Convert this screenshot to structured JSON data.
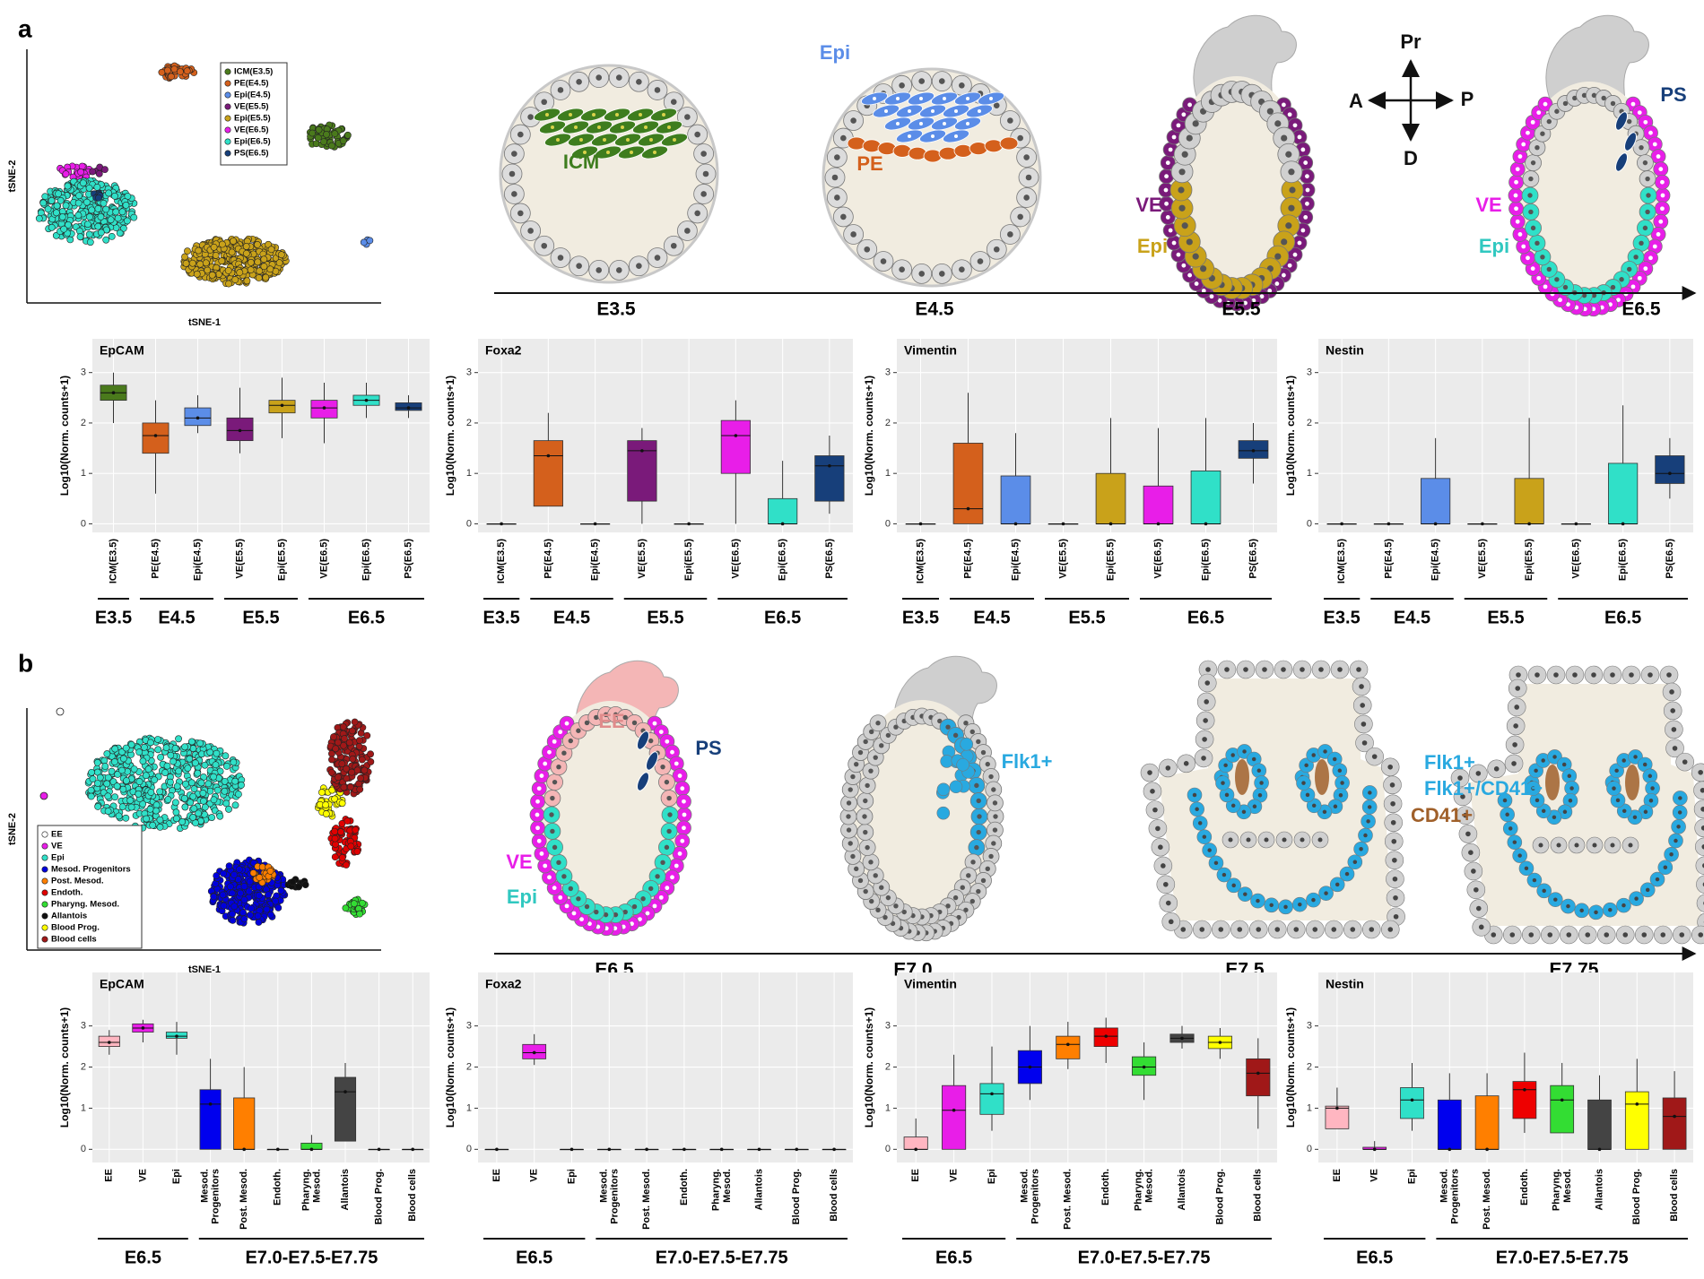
{
  "panel_labels": [
    "a",
    "b"
  ],
  "tsne_a": {
    "xlabel": "tSNE-1",
    "ylabel": "tSNE-2",
    "legend": {
      "names": [
        "ICM(E3.5)",
        "PE(E4.5)",
        "Epi(E4.5)",
        "VE(E5.5)",
        "Epi(E5.5)",
        "VE(E6.5)",
        "Epi(E6.5)",
        "PS(E6.5)"
      ],
      "colors": [
        "#4a7a1c",
        "#d4601c",
        "#5b8de8",
        "#7a1a7a",
        "#c9a21a",
        "#e81ee8",
        "#30e0c8",
        "#173f7a"
      ]
    }
  },
  "tsne_b": {
    "xlabel": "tSNE-1",
    "ylabel": "tSNE-2",
    "legend": {
      "names": [
        "EE",
        "VE",
        "Epi",
        "Mesod. Progenitors",
        "Post. Mesod.",
        "Endoth.",
        "Pharyng. Mesod.",
        "Allantois",
        "Blood Prog.",
        "Blood cells"
      ],
      "colors": [
        "#ffffff",
        "#e81ee8",
        "#30e0c8",
        "#0000dd",
        "#ff7f00",
        "#e00000",
        "#33dd33",
        "#111111",
        "#ffff00",
        "#a01818"
      ]
    }
  },
  "diagram_a": {
    "timeline": [
      "E3.5",
      "E4.5",
      "E5.5",
      "E6.5"
    ],
    "labels": [
      {
        "text": "ICM",
        "color": "#3e7d1e"
      },
      {
        "text": "Epi",
        "color": "#5b8de8"
      },
      {
        "text": "PE",
        "color": "#d4601c"
      },
      {
        "text": "VE",
        "color": "#7a1a7a"
      },
      {
        "text": "Epi",
        "color": "#c9a21a"
      },
      {
        "text": "Pr",
        "color": "#111111"
      },
      {
        "text": "A",
        "color": "#111111"
      },
      {
        "text": "P",
        "color": "#111111"
      },
      {
        "text": "D",
        "color": "#111111"
      },
      {
        "text": "PS",
        "color": "#173f7a"
      },
      {
        "text": "VE",
        "color": "#e81ee8"
      },
      {
        "text": "Epi",
        "color": "#30c8c0"
      }
    ]
  },
  "diagram_b": {
    "timeline": [
      "E6.5",
      "E7.0",
      "E7.5",
      "E7.75"
    ],
    "labels": [
      {
        "text": "EE",
        "color": "#e08c8c"
      },
      {
        "text": "PS",
        "color": "#173f7a"
      },
      {
        "text": "VE",
        "color": "#e81ee8"
      },
      {
        "text": "Epi",
        "color": "#30c8c0"
      },
      {
        "text": "Flk1+",
        "color": "#29a9e0"
      },
      {
        "text": "Flk1+",
        "color": "#29a9e0"
      },
      {
        "text": "Flk1+/CD41+",
        "color": "#29a9e0"
      },
      {
        "text": "CD41+",
        "color": "#a0602a"
      }
    ]
  },
  "chart_data": [
    {
      "type": "box",
      "title": "EpCAM",
      "y_label": "Log10(Norm. counts+1)",
      "categories": [
        "ICM(E3.5)",
        "PE(E4.5)",
        "Epi(E4.5)",
        "VE(E5.5)",
        "Epi(E5.5)",
        "VE(E6.5)",
        "Epi(E6.5)",
        "PS(E6.5)"
      ],
      "colors": [
        "#4a7a1c",
        "#d4601c",
        "#5b8de8",
        "#7a1a7a",
        "#c9a21a",
        "#e81ee8",
        "#30e0c8",
        "#173f7a"
      ],
      "boxes": [
        {
          "whisker_low": 2.0,
          "q1": 2.45,
          "median": 2.6,
          "q3": 2.75,
          "whisker_high": 3.0
        },
        {
          "whisker_low": 0.6,
          "q1": 1.4,
          "median": 1.75,
          "q3": 2.0,
          "whisker_high": 2.45
        },
        {
          "whisker_low": 1.8,
          "q1": 1.95,
          "median": 2.1,
          "q3": 2.3,
          "whisker_high": 2.55
        },
        {
          "whisker_low": 1.4,
          "q1": 1.65,
          "median": 1.85,
          "q3": 2.1,
          "whisker_high": 2.7
        },
        {
          "whisker_low": 1.7,
          "q1": 2.2,
          "median": 2.35,
          "q3": 2.45,
          "whisker_high": 2.9
        },
        {
          "whisker_low": 1.6,
          "q1": 2.1,
          "median": 2.3,
          "q3": 2.45,
          "whisker_high": 2.8
        },
        {
          "whisker_low": 2.1,
          "q1": 2.35,
          "median": 2.45,
          "q3": 2.55,
          "whisker_high": 2.8
        },
        {
          "whisker_low": 2.1,
          "q1": 2.25,
          "median": 2.3,
          "q3": 2.4,
          "whisker_high": 2.55
        }
      ],
      "ylim": [
        -0.17,
        3.67
      ],
      "yticks": [
        0,
        1,
        2,
        3
      ],
      "grid": true,
      "stages": [
        "E3.5",
        "E4.5",
        "E5.5",
        "E6.5"
      ]
    },
    {
      "type": "box",
      "title": "Foxa2",
      "y_label": "Log10(Norm. counts+1)",
      "categories": [
        "ICM(E3.5)",
        "PE(E4.5)",
        "Epi(E4.5)",
        "VE(E5.5)",
        "Epi(E5.5)",
        "VE(E6.5)",
        "Epi(E6.5)",
        "PS(E6.5)"
      ],
      "colors": [
        "#4a7a1c",
        "#d4601c",
        "#5b8de8",
        "#7a1a7a",
        "#c9a21a",
        "#e81ee8",
        "#30e0c8",
        "#173f7a"
      ],
      "boxes": [
        {
          "whisker_low": 0,
          "q1": 0,
          "median": 0,
          "q3": 0,
          "whisker_high": 0
        },
        {
          "whisker_low": 0.35,
          "q1": 0.35,
          "median": 1.35,
          "q3": 1.65,
          "whisker_high": 2.2
        },
        {
          "whisker_low": 0,
          "q1": 0,
          "median": 0,
          "q3": 0,
          "whisker_high": 0
        },
        {
          "whisker_low": 0,
          "q1": 0.45,
          "median": 1.45,
          "q3": 1.65,
          "whisker_high": 1.9
        },
        {
          "whisker_low": 0,
          "q1": 0,
          "median": 0,
          "q3": 0,
          "whisker_high": 0
        },
        {
          "whisker_low": 0,
          "q1": 1.0,
          "median": 1.75,
          "q3": 2.05,
          "whisker_high": 2.45
        },
        {
          "whisker_low": 0,
          "q1": 0,
          "median": 0,
          "q3": 0.5,
          "whisker_high": 1.25
        },
        {
          "whisker_low": 0.2,
          "q1": 0.45,
          "median": 1.15,
          "q3": 1.35,
          "whisker_high": 1.75
        }
      ],
      "ylim": [
        -0.17,
        3.67
      ],
      "yticks": [
        0,
        1,
        2,
        3
      ],
      "grid": true,
      "stages": [
        "E3.5",
        "E4.5",
        "E5.5",
        "E6.5"
      ]
    },
    {
      "type": "box",
      "title": "Vimentin",
      "y_label": "Log10(Norm. counts+1)",
      "categories": [
        "ICM(E3.5)",
        "PE(E4.5)",
        "Epi(E4.5)",
        "VE(E5.5)",
        "Epi(E5.5)",
        "VE(E6.5)",
        "Epi(E6.5)",
        "PS(E6.5)"
      ],
      "colors": [
        "#4a7a1c",
        "#d4601c",
        "#5b8de8",
        "#7a1a7a",
        "#c9a21a",
        "#e81ee8",
        "#30e0c8",
        "#173f7a"
      ],
      "boxes": [
        {
          "whisker_low": 0,
          "q1": 0,
          "median": 0,
          "q3": 0,
          "whisker_high": 0
        },
        {
          "whisker_low": 0,
          "q1": 0,
          "median": 0.3,
          "q3": 1.6,
          "whisker_high": 2.6
        },
        {
          "whisker_low": 0,
          "q1": 0,
          "median": 0,
          "q3": 0.95,
          "whisker_high": 1.8
        },
        {
          "whisker_low": 0,
          "q1": 0,
          "median": 0,
          "q3": 0,
          "whisker_high": 0
        },
        {
          "whisker_low": 0,
          "q1": 0,
          "median": 0,
          "q3": 1.0,
          "whisker_high": 2.1
        },
        {
          "whisker_low": 0,
          "q1": 0,
          "median": 0,
          "q3": 0.75,
          "whisker_high": 1.9
        },
        {
          "whisker_low": 0,
          "q1": 0,
          "median": 0,
          "q3": 1.05,
          "whisker_high": 2.1
        },
        {
          "whisker_low": 0.8,
          "q1": 1.3,
          "median": 1.45,
          "q3": 1.65,
          "whisker_high": 2.0
        }
      ],
      "ylim": [
        -0.17,
        3.67
      ],
      "yticks": [
        0,
        1,
        2,
        3
      ],
      "grid": true,
      "stages": [
        "E3.5",
        "E4.5",
        "E5.5",
        "E6.5"
      ]
    },
    {
      "type": "box",
      "title": "Nestin",
      "y_label": "Log10(Norm. counts+1)",
      "categories": [
        "ICM(E3.5)",
        "PE(E4.5)",
        "Epi(E4.5)",
        "VE(E5.5)",
        "Epi(E5.5)",
        "VE(E6.5)",
        "Epi(E6.5)",
        "PS(E6.5)"
      ],
      "colors": [
        "#4a7a1c",
        "#d4601c",
        "#5b8de8",
        "#7a1a7a",
        "#c9a21a",
        "#e81ee8",
        "#30e0c8",
        "#173f7a"
      ],
      "boxes": [
        {
          "whisker_low": 0,
          "q1": 0,
          "median": 0,
          "q3": 0,
          "whisker_high": 0
        },
        {
          "whisker_low": 0,
          "q1": 0,
          "median": 0,
          "q3": 0,
          "whisker_high": 0
        },
        {
          "whisker_low": 0,
          "q1": 0,
          "median": 0,
          "q3": 0.9,
          "whisker_high": 1.7
        },
        {
          "whisker_low": 0,
          "q1": 0,
          "median": 0,
          "q3": 0,
          "whisker_high": 0
        },
        {
          "whisker_low": 0,
          "q1": 0,
          "median": 0,
          "q3": 0.9,
          "whisker_high": 2.1
        },
        {
          "whisker_low": 0,
          "q1": 0,
          "median": 0,
          "q3": 0,
          "whisker_high": 0
        },
        {
          "whisker_low": 0,
          "q1": 0,
          "median": 0,
          "q3": 1.2,
          "whisker_high": 2.35
        },
        {
          "whisker_low": 0.5,
          "q1": 0.8,
          "median": 1.0,
          "q3": 1.35,
          "whisker_high": 1.7
        }
      ],
      "ylim": [
        -0.17,
        3.67
      ],
      "yticks": [
        0,
        1,
        2,
        3
      ],
      "grid": true,
      "stages": [
        "E3.5",
        "E4.5",
        "E5.5",
        "E6.5"
      ]
    },
    {
      "type": "box",
      "title": "EpCAM",
      "y_label": "Log10(Norm. counts+1)",
      "categories": [
        "EE",
        "VE",
        "Epi",
        "Mesod.\nProgenitors",
        "Post. Mesod.",
        "Endoth.",
        "Pharyng.\nMesod.",
        "Allantois",
        "Blood Prog.",
        "Blood cells"
      ],
      "colors": [
        "#ffb6c1",
        "#e81ee8",
        "#30e0c8",
        "#0000ee",
        "#ff7f00",
        "#ee0000",
        "#33dd33",
        "#444444",
        "#ffff00",
        "#a01818"
      ],
      "boxes": [
        {
          "whisker_low": 2.3,
          "q1": 2.5,
          "median": 2.6,
          "q3": 2.75,
          "whisker_high": 2.9
        },
        {
          "whisker_low": 2.6,
          "q1": 2.85,
          "median": 2.95,
          "q3": 3.05,
          "whisker_high": 3.15
        },
        {
          "whisker_low": 2.3,
          "q1": 2.7,
          "median": 2.75,
          "q3": 2.85,
          "whisker_high": 3.1
        },
        {
          "whisker_low": 0,
          "q1": 0,
          "median": 1.1,
          "q3": 1.45,
          "whisker_high": 2.2
        },
        {
          "whisker_low": 0,
          "q1": 0,
          "median": 0,
          "q3": 1.25,
          "whisker_high": 2.0
        },
        {
          "whisker_low": 0,
          "q1": 0,
          "median": 0,
          "q3": 0,
          "whisker_high": 0
        },
        {
          "whisker_low": 0,
          "q1": 0,
          "median": 0,
          "q3": 0.15,
          "whisker_high": 0.35
        },
        {
          "whisker_low": 0.2,
          "q1": 0.2,
          "median": 1.4,
          "q3": 1.75,
          "whisker_high": 2.1
        },
        {
          "whisker_low": 0,
          "q1": 0,
          "median": 0,
          "q3": 0,
          "whisker_high": 0
        },
        {
          "whisker_low": 0,
          "q1": 0,
          "median": 0,
          "q3": 0,
          "whisker_high": 0
        }
      ],
      "ylim": [
        -0.32,
        4.3
      ],
      "yticks": [
        0,
        1,
        2,
        3
      ],
      "grid": true,
      "stages": [
        "E6.5",
        "E7.0-E7.5-E7.75"
      ]
    },
    {
      "type": "box",
      "title": "Foxa2",
      "y_label": "Log10(Norm. counts+1)",
      "categories": [
        "EE",
        "VE",
        "Epi",
        "Mesod.\nProgenitors",
        "Post. Mesod.",
        "Endoth.",
        "Pharyng.\nMesod.",
        "Allantois",
        "Blood Prog.",
        "Blood cells"
      ],
      "colors": [
        "#ffb6c1",
        "#e81ee8",
        "#30e0c8",
        "#0000ee",
        "#ff7f00",
        "#ee0000",
        "#33dd33",
        "#444444",
        "#ffff00",
        "#a01818"
      ],
      "boxes": [
        {
          "whisker_low": 0,
          "q1": 0,
          "median": 0,
          "q3": 0,
          "whisker_high": 0
        },
        {
          "whisker_low": 2.05,
          "q1": 2.2,
          "median": 2.35,
          "q3": 2.55,
          "whisker_high": 2.8
        },
        {
          "whisker_low": 0,
          "q1": 0,
          "median": 0,
          "q3": 0,
          "whisker_high": 0
        },
        {
          "whisker_low": 0,
          "q1": 0,
          "median": 0,
          "q3": 0,
          "whisker_high": 0
        },
        {
          "whisker_low": 0,
          "q1": 0,
          "median": 0,
          "q3": 0,
          "whisker_high": 0
        },
        {
          "whisker_low": 0,
          "q1": 0,
          "median": 0,
          "q3": 0,
          "whisker_high": 0
        },
        {
          "whisker_low": 0,
          "q1": 0,
          "median": 0,
          "q3": 0,
          "whisker_high": 0
        },
        {
          "whisker_low": 0,
          "q1": 0,
          "median": 0,
          "q3": 0,
          "whisker_high": 0
        },
        {
          "whisker_low": 0,
          "q1": 0,
          "median": 0,
          "q3": 0,
          "whisker_high": 0
        },
        {
          "whisker_low": 0,
          "q1": 0,
          "median": 0,
          "q3": 0,
          "whisker_high": 0
        }
      ],
      "ylim": [
        -0.32,
        4.3
      ],
      "yticks": [
        0,
        1,
        2,
        3
      ],
      "grid": true,
      "stages": [
        "E6.5",
        "E7.0-E7.5-E7.75"
      ]
    },
    {
      "type": "box",
      "title": "Vimentin",
      "y_label": "Log10(Norm. counts+1)",
      "categories": [
        "EE",
        "VE",
        "Epi",
        "Mesod.\nProgenitors",
        "Post. Mesod.",
        "Endoth.",
        "Pharyng.\nMesod.",
        "Allantois",
        "Blood Prog.",
        "Blood cells"
      ],
      "colors": [
        "#ffb6c1",
        "#e81ee8",
        "#30e0c8",
        "#0000ee",
        "#ff7f00",
        "#ee0000",
        "#33dd33",
        "#444444",
        "#ffff00",
        "#a01818"
      ],
      "boxes": [
        {
          "whisker_low": 0,
          "q1": 0,
          "median": 0,
          "q3": 0.3,
          "whisker_high": 0.75
        },
        {
          "whisker_low": 0,
          "q1": 0,
          "median": 0.95,
          "q3": 1.55,
          "whisker_high": 2.3
        },
        {
          "whisker_low": 0.45,
          "q1": 0.85,
          "median": 1.35,
          "q3": 1.6,
          "whisker_high": 2.5
        },
        {
          "whisker_low": 1.2,
          "q1": 1.6,
          "median": 2.0,
          "q3": 2.4,
          "whisker_high": 3.0
        },
        {
          "whisker_low": 1.95,
          "q1": 2.2,
          "median": 2.55,
          "q3": 2.75,
          "whisker_high": 3.1
        },
        {
          "whisker_low": 2.1,
          "q1": 2.5,
          "median": 2.75,
          "q3": 2.95,
          "whisker_high": 3.2
        },
        {
          "whisker_low": 1.2,
          "q1": 1.8,
          "median": 2.0,
          "q3": 2.25,
          "whisker_high": 2.6
        },
        {
          "whisker_low": 2.45,
          "q1": 2.6,
          "median": 2.7,
          "q3": 2.8,
          "whisker_high": 3.0
        },
        {
          "whisker_low": 2.2,
          "q1": 2.45,
          "median": 2.6,
          "q3": 2.75,
          "whisker_high": 2.95
        },
        {
          "whisker_low": 0.5,
          "q1": 1.3,
          "median": 1.85,
          "q3": 2.2,
          "whisker_high": 2.7
        }
      ],
      "ylim": [
        -0.32,
        4.3
      ],
      "yticks": [
        0,
        1,
        2,
        3
      ],
      "grid": true,
      "stages": [
        "E6.5",
        "E7.0-E7.5-E7.75"
      ]
    },
    {
      "type": "box",
      "title": "Nestin",
      "y_label": "Log10(Norm. counts+1)",
      "categories": [
        "EE",
        "VE",
        "Epi",
        "Mesod.\nProgenitors",
        "Post. Mesod.",
        "Endoth.",
        "Pharyng.\nMesod.",
        "Allantois",
        "Blood Prog.",
        "Blood cells"
      ],
      "colors": [
        "#ffb6c1",
        "#e81ee8",
        "#30e0c8",
        "#0000ee",
        "#ff7f00",
        "#ee0000",
        "#33dd33",
        "#444444",
        "#ffff00",
        "#a01818"
      ],
      "boxes": [
        {
          "whisker_low": 0.5,
          "q1": 0.5,
          "median": 1.0,
          "q3": 1.05,
          "whisker_high": 1.5
        },
        {
          "whisker_low": 0,
          "q1": 0,
          "median": 0,
          "q3": 0.05,
          "whisker_high": 0.2
        },
        {
          "whisker_low": 0.45,
          "q1": 0.75,
          "median": 1.2,
          "q3": 1.5,
          "whisker_high": 2.1
        },
        {
          "whisker_low": 0,
          "q1": 0,
          "median": 0,
          "q3": 1.2,
          "whisker_high": 1.85
        },
        {
          "whisker_low": 0,
          "q1": 0,
          "median": 0,
          "q3": 1.3,
          "whisker_high": 1.85
        },
        {
          "whisker_low": 0.4,
          "q1": 0.75,
          "median": 1.45,
          "q3": 1.65,
          "whisker_high": 2.35
        },
        {
          "whisker_low": 0.4,
          "q1": 0.4,
          "median": 1.2,
          "q3": 1.55,
          "whisker_high": 2.1
        },
        {
          "whisker_low": 0,
          "q1": 0,
          "median": 0,
          "q3": 1.2,
          "whisker_high": 1.8
        },
        {
          "whisker_low": 0,
          "q1": 0,
          "median": 1.1,
          "q3": 1.4,
          "whisker_high": 2.2
        },
        {
          "whisker_low": 0,
          "q1": 0,
          "median": 0.8,
          "q3": 1.25,
          "whisker_high": 1.9
        }
      ],
      "ylim": [
        -0.32,
        4.3
      ],
      "yticks": [
        0,
        1,
        2,
        3
      ],
      "grid": true,
      "stages": [
        "E6.5",
        "E7.0-E7.5-E7.75"
      ]
    }
  ]
}
